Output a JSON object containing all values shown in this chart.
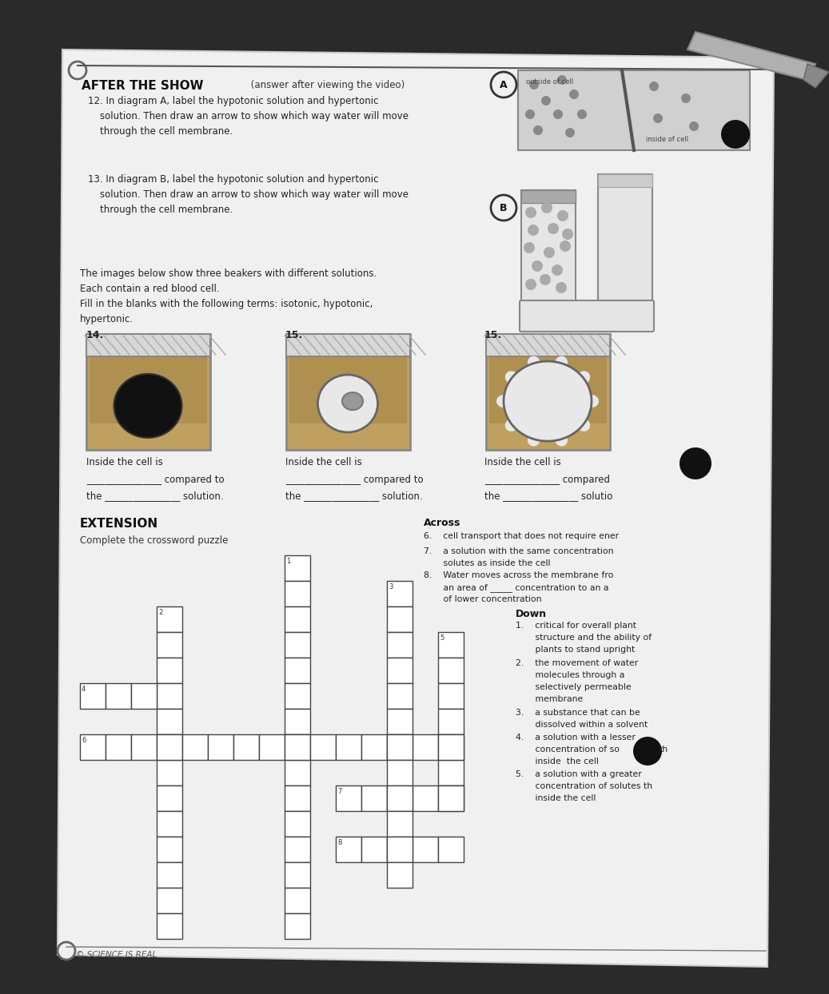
{
  "bg_color": "#2a2a2a",
  "paper_color": "#f0f0f0",
  "title_bold": "AFTER THE SHOW",
  "title_normal": " (answer after viewing the video)",
  "q12": "12. In diagram A, label the hypotonic solution and hypertonic\n    solution. Then draw an arrow to show which way water will move\n    through the cell membrane.",
  "q13": "13. In diagram B, label the hypotonic solution and hypertonic\n    solution. Then draw an arrow to show which way water will move\n    through the cell membrane.",
  "beaker_intro": "The images below show three beakers with different solutions.\nEach contain a red blood cell.\nFill in the blanks with the following terms: isotonic, hypotonic,\nhypertonic.",
  "label14": "14.",
  "label15a": "15.",
  "label15b": "15.",
  "inside_cell_text": "Inside the cell is",
  "extension_title": "EXTENSION",
  "extension_sub": "Complete the crossword puzzle",
  "across_title": "Across",
  "across_clue6": "6.    cell transport that does not require ener",
  "across_clue7a": "7.    a solution with the same concentration",
  "across_clue7b": "       solutes as inside the cell",
  "across_clue8a": "8.    Water moves across the membrane fro",
  "across_clue8b": "       an area of _____ concentration to an a",
  "across_clue8c": "       of lower concentration",
  "down_title": "Down",
  "down_clue1a": "1.    critical for overall plant",
  "down_clue1b": "       structure and the ability of",
  "down_clue1c": "       plants to stand upright",
  "down_clue2a": "2.    the movement of water",
  "down_clue2b": "       molecules through a",
  "down_clue2c": "       selectively permeable",
  "down_clue2d": "       membrane",
  "down_clue3a": "3.    a substance that can be",
  "down_clue3b": "       dissolved within a solvent",
  "down_clue4a": "4.    a solution with a lesser",
  "down_clue4b": "       concentration of so",
  "down_clue4c": "       inside  the cell",
  "down_clue5a": "5.    a solution with a greater",
  "down_clue5b": "       concentration of solutes th",
  "down_clue5c": "       inside the cell",
  "copyright": "© SCIENCE IS REAL",
  "circle_A": "A",
  "circle_B": "B"
}
